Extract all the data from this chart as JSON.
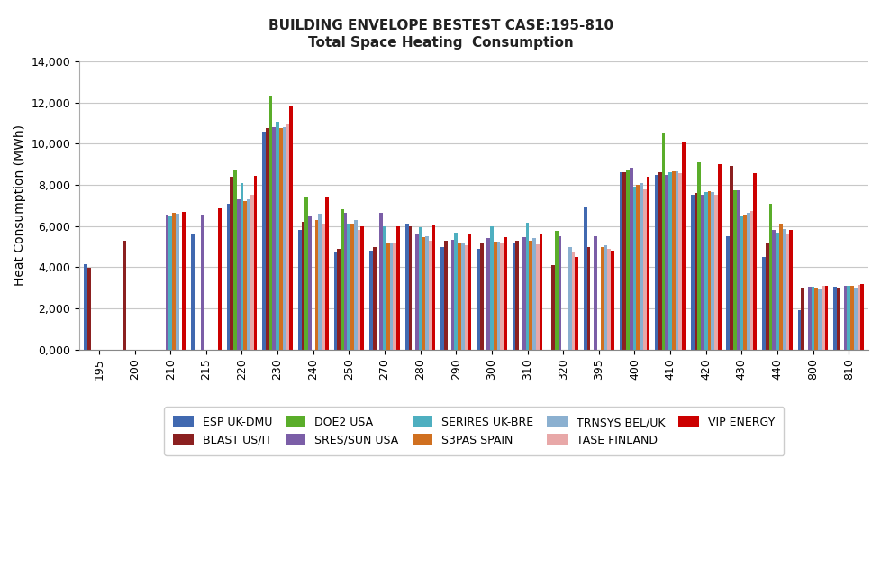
{
  "title1": "BUILDING ENVELOPE BESTEST CASE:195-810",
  "title2": "Total Space Heating  Consumption",
  "ylabel": "Heat Consumption (MWh)",
  "categories": [
    195,
    200,
    210,
    215,
    220,
    230,
    240,
    250,
    270,
    280,
    290,
    300,
    310,
    320,
    395,
    400,
    410,
    420,
    430,
    440,
    800,
    810
  ],
  "series": {
    "ESP UK-DMU": [
      4150,
      0,
      0,
      5600,
      7100,
      10600,
      5800,
      4700,
      4800,
      6100,
      5000,
      4900,
      5200,
      0,
      6900,
      8600,
      8500,
      7500,
      5500,
      4500,
      1900,
      3050
    ],
    "BLAST US/IT": [
      3950,
      5300,
      0,
      0,
      8400,
      10750,
      6200,
      4900,
      5000,
      6000,
      5300,
      5200,
      5300,
      4100,
      5000,
      8600,
      8600,
      7600,
      8900,
      5200,
      3000,
      3000
    ],
    "DOE2 USA": [
      0,
      0,
      0,
      0,
      8750,
      12350,
      7450,
      6800,
      0,
      0,
      0,
      0,
      0,
      5750,
      0,
      8750,
      10500,
      9100,
      7750,
      7100,
      0,
      0
    ],
    "SRES/SUN USA": [
      0,
      0,
      6550,
      6550,
      7300,
      10800,
      6500,
      6650,
      6650,
      5650,
      5350,
      5400,
      5450,
      5500,
      5500,
      8850,
      8500,
      7500,
      7750,
      5800,
      3050,
      3100
    ],
    "SERIRES UK-BRE": [
      0,
      0,
      6500,
      0,
      8100,
      11050,
      0,
      6100,
      6000,
      5950,
      5700,
      6000,
      6150,
      0,
      0,
      7900,
      8600,
      7650,
      6500,
      5700,
      3050,
      3100
    ],
    "S3PAS SPAIN": [
      0,
      0,
      6650,
      0,
      7200,
      10750,
      6300,
      6100,
      5150,
      5450,
      5150,
      5250,
      5300,
      0,
      5000,
      8000,
      8650,
      7700,
      6550,
      6100,
      3000,
      3100
    ],
    "TRNSYS BEL/UK": [
      0,
      0,
      6600,
      0,
      7300,
      10800,
      6600,
      6300,
      5200,
      5500,
      5150,
      5250,
      5400,
      5000,
      5050,
      8100,
      8650,
      7650,
      6650,
      5850,
      2950,
      3000
    ],
    "TASE FINLAND": [
      0,
      0,
      0,
      0,
      7500,
      11000,
      6100,
      5800,
      5200,
      5300,
      5050,
      5150,
      5100,
      4700,
      4900,
      7800,
      8550,
      7500,
      6750,
      5600,
      3100,
      3150
    ],
    "VIP ENERGY": [
      0,
      0,
      6700,
      6850,
      8450,
      11800,
      7400,
      6000,
      6000,
      6050,
      5600,
      5450,
      5600,
      4500,
      4800,
      8400,
      10100,
      9000,
      8550,
      5800,
      3100,
      3200
    ]
  },
  "colors": {
    "ESP UK-DMU": "#4169B0",
    "BLAST US/IT": "#8B2020",
    "DOE2 USA": "#5AAD2A",
    "SRES/SUN USA": "#7B5EA7",
    "SERIRES UK-BRE": "#4EAFC0",
    "S3PAS SPAIN": "#D07020",
    "TRNSYS BEL/UK": "#8BB0D0",
    "TASE FINLAND": "#E8A8A8",
    "VIP ENERGY": "#CC0000"
  },
  "ylim": [
    0,
    14000
  ],
  "yticks": [
    0,
    2000,
    4000,
    6000,
    8000,
    10000,
    12000,
    14000
  ],
  "ytick_labels": [
    "0,000",
    "2,000",
    "4,000",
    "6,000",
    "8,000",
    "10,000",
    "12,000",
    "14,000"
  ],
  "background_color": "#FFFFFF",
  "grid_color": "#C8C8C8",
  "legend_order": [
    "ESP UK-DMU",
    "BLAST US/IT",
    "DOE2 USA",
    "SRES/SUN USA",
    "SERIRES UK-BRE",
    "S3PAS SPAIN",
    "TRNSYS BEL/UK",
    "TASE FINLAND",
    "VIP ENERGY"
  ]
}
